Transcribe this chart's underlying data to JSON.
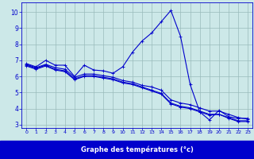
{
  "bg_color": "#cce8e8",
  "plot_bg_color": "#cce8e8",
  "bottom_bar_color": "#0000cc",
  "line_color": "#0000cc",
  "grid_color": "#99bbbb",
  "xlabel": "Graphe des températures (°c)",
  "xlabel_color": "#ffffff",
  "xlim": [
    -0.5,
    23.5
  ],
  "ylim": [
    2.8,
    10.6
  ],
  "yticks": [
    3,
    4,
    5,
    6,
    7,
    8,
    9,
    10
  ],
  "xticks": [
    0,
    1,
    2,
    3,
    4,
    5,
    6,
    7,
    8,
    9,
    10,
    11,
    12,
    13,
    14,
    15,
    16,
    17,
    18,
    19,
    20,
    21,
    22,
    23
  ],
  "series": [
    {
      "x": [
        0,
        1,
        2,
        3,
        4,
        5,
        6,
        7,
        8,
        9,
        10,
        11,
        12,
        13,
        14,
        15,
        16,
        17,
        18,
        19,
        20,
        21,
        22,
        23
      ],
      "y": [
        6.8,
        6.6,
        7.0,
        6.7,
        6.7,
        6.0,
        6.7,
        6.4,
        6.35,
        6.2,
        6.6,
        7.5,
        8.2,
        8.7,
        9.4,
        10.1,
        8.5,
        5.5,
        3.8,
        3.3,
        3.9,
        3.5,
        3.4,
        3.4
      ]
    },
    {
      "x": [
        0,
        1,
        2,
        3,
        4,
        5,
        6,
        7,
        8,
        9,
        10,
        11,
        12,
        13,
        14,
        15,
        16,
        17,
        18,
        19,
        20,
        21,
        22,
        23
      ],
      "y": [
        6.75,
        6.55,
        6.75,
        6.55,
        6.45,
        5.95,
        6.15,
        6.15,
        6.05,
        5.95,
        5.75,
        5.65,
        5.45,
        5.35,
        5.15,
        4.55,
        4.35,
        4.25,
        4.05,
        3.85,
        3.85,
        3.65,
        3.45,
        3.35
      ]
    },
    {
      "x": [
        0,
        1,
        2,
        3,
        4,
        5,
        6,
        7,
        8,
        9,
        10,
        11,
        12,
        13,
        14,
        15,
        16,
        17,
        18,
        19,
        20,
        21,
        22,
        23
      ],
      "y": [
        6.7,
        6.5,
        6.7,
        6.45,
        6.35,
        5.85,
        6.05,
        6.05,
        5.95,
        5.85,
        5.65,
        5.55,
        5.35,
        5.15,
        4.95,
        4.35,
        4.15,
        4.05,
        3.85,
        3.65,
        3.65,
        3.45,
        3.25,
        3.25
      ]
    },
    {
      "x": [
        0,
        1,
        2,
        3,
        4,
        5,
        6,
        7,
        8,
        9,
        10,
        11,
        12,
        13,
        14,
        15,
        16,
        17,
        18,
        19,
        20,
        21,
        22,
        23
      ],
      "y": [
        6.65,
        6.45,
        6.65,
        6.4,
        6.3,
        5.8,
        6.0,
        6.0,
        5.9,
        5.8,
        5.6,
        5.5,
        5.3,
        5.1,
        4.9,
        4.3,
        4.1,
        4.0,
        3.8,
        3.6,
        3.65,
        3.4,
        3.2,
        3.2
      ]
    }
  ]
}
